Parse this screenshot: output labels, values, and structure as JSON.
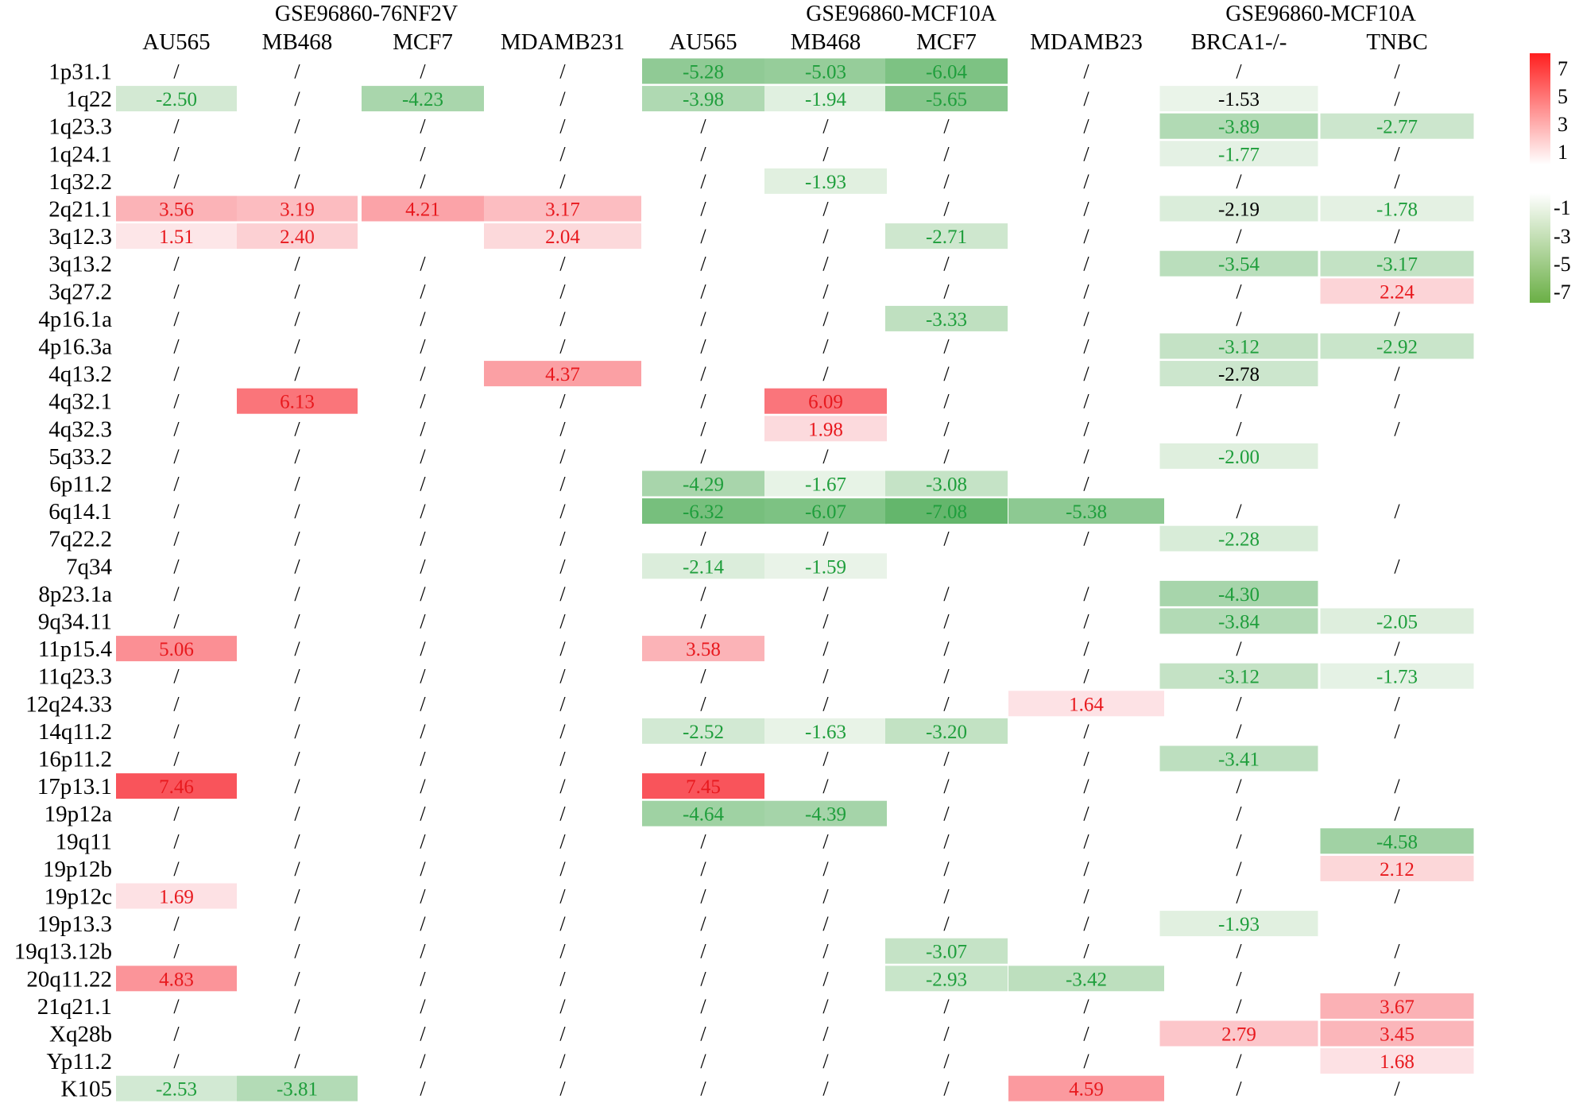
{
  "chart_data": {
    "type": "heatmap",
    "groups": [
      {
        "label": "GSE96860-76NF2V",
        "columns": [
          "AU565",
          "MB468",
          "MCF7",
          "MDAMB231"
        ]
      },
      {
        "label": "GSE96860-MCF10A",
        "columns": [
          "AU565",
          "MB468",
          "MCF7",
          "MDAMB23"
        ]
      },
      {
        "label": "GSE96860-MCF10A",
        "columns": [
          "BRCA1-/-",
          "TNBC"
        ]
      }
    ],
    "rows": [
      "1p31.1",
      "1q22",
      "1q23.3",
      "1q24.1",
      "1q32.2",
      "2q21.1",
      "3q12.3",
      "3q13.2",
      "3q27.2",
      "4p16.1a",
      "4p16.3a",
      "4q13.2",
      "4q32.1",
      "4q32.3",
      "5q33.2",
      "6p11.2",
      "6q14.1",
      "7q22.2",
      "7q34",
      "8p23.1a",
      "9q34.11",
      "11p15.4",
      "11q23.3",
      "12q24.33",
      "14q11.2",
      "16p11.2",
      "17p13.1",
      "19p12a",
      "19q11",
      "19p12b",
      "19p12c",
      "19p13.3",
      "19q13.12b",
      "20q11.22",
      "21q21.1",
      "Xq28b",
      "Yp11.2",
      "K105"
    ],
    "values": [
      [
        "/",
        "/",
        "/",
        "/",
        "-5.28",
        "-5.03",
        "-6.04",
        "/",
        "/",
        "/"
      ],
      [
        "-2.50",
        "/",
        "-4.23",
        "/",
        "-3.98",
        "-1.94",
        "-5.65",
        "/",
        "-1.53",
        "/"
      ],
      [
        "/",
        "/",
        "/",
        "/",
        "/",
        "/",
        "/",
        "/",
        "-3.89",
        "-2.77"
      ],
      [
        "/",
        "/",
        "/",
        "/",
        "/",
        "/",
        "/",
        "/",
        "-1.77",
        "/"
      ],
      [
        "/",
        "/",
        "/",
        "/",
        "/",
        "-1.93",
        "/",
        "/",
        "/",
        "/"
      ],
      [
        "3.56",
        "3.19",
        "4.21",
        "3.17",
        "/",
        "/",
        "/",
        "/",
        "-2.19",
        "-1.78"
      ],
      [
        "1.51",
        "2.40",
        "",
        "2.04",
        "/",
        "/",
        "-2.71",
        "/",
        "/",
        "/"
      ],
      [
        "/",
        "/",
        "/",
        "/",
        "/",
        "/",
        "/",
        "/",
        "-3.54",
        "-3.17"
      ],
      [
        "/",
        "/",
        "/",
        "/",
        "/",
        "/",
        "/",
        "/",
        "/",
        "2.24"
      ],
      [
        "/",
        "/",
        "/",
        "/",
        "/",
        "/",
        "-3.33",
        "/",
        "/",
        "/"
      ],
      [
        "/",
        "/",
        "/",
        "/",
        "/",
        "/",
        "/",
        "/",
        "-3.12",
        "-2.92"
      ],
      [
        "/",
        "/",
        "/",
        "4.37",
        "/",
        "/",
        "/",
        "/",
        "-2.78",
        "/"
      ],
      [
        "/",
        "6.13",
        "/",
        "/",
        "/",
        "6.09",
        "/",
        "/",
        "/",
        "/"
      ],
      [
        "/",
        "/",
        "/",
        "/",
        "/",
        "1.98",
        "/",
        "/",
        "/",
        "/"
      ],
      [
        "/",
        "/",
        "/",
        "/",
        "/",
        "/",
        "/",
        "/",
        "-2.00",
        ""
      ],
      [
        "/",
        "/",
        "/",
        "/",
        "-4.29",
        "-1.67",
        "-3.08",
        "/",
        "",
        ""
      ],
      [
        "/",
        "/",
        "/",
        "/",
        "-6.32",
        "-6.07",
        "-7.08",
        "-5.38",
        "/",
        "/"
      ],
      [
        "/",
        "/",
        "/",
        "/",
        "/",
        "/",
        "/",
        "/",
        "-2.28",
        ""
      ],
      [
        "/",
        "/",
        "/",
        "/",
        "-2.14",
        "-1.59",
        "",
        "",
        "",
        "/"
      ],
      [
        "/",
        "/",
        "/",
        "/",
        "/",
        "/",
        "/",
        "/",
        "-4.30",
        ""
      ],
      [
        "/",
        "/",
        "/",
        "/",
        "/",
        "/",
        "/",
        "/",
        "-3.84",
        "-2.05"
      ],
      [
        "5.06",
        "/",
        "/",
        "/",
        "3.58",
        "/",
        "/",
        "/",
        "/",
        "/"
      ],
      [
        "/",
        "/",
        "/",
        "/",
        "/",
        "/",
        "/",
        "/",
        "-3.12",
        "-1.73"
      ],
      [
        "/",
        "/",
        "/",
        "/",
        "/",
        "/",
        "/",
        "1.64",
        "/",
        "/"
      ],
      [
        "/",
        "/",
        "/",
        "/",
        "-2.52",
        "-1.63",
        "-3.20",
        "/",
        "/",
        "/"
      ],
      [
        "/",
        "/",
        "/",
        "/",
        "/",
        "/",
        "/",
        "/",
        "-3.41",
        ""
      ],
      [
        "7.46",
        "/",
        "/",
        "/",
        "7.45",
        "/",
        "/",
        "/",
        "/",
        "/"
      ],
      [
        "/",
        "/",
        "/",
        "/",
        "-4.64",
        "-4.39",
        "/",
        "/",
        "/",
        "/"
      ],
      [
        "/",
        "/",
        "/",
        "/",
        "/",
        "/",
        "/",
        "/",
        "/",
        "-4.58"
      ],
      [
        "/",
        "/",
        "/",
        "/",
        "/",
        "/",
        "/",
        "/",
        "/",
        "2.12"
      ],
      [
        "1.69",
        "/",
        "/",
        "/",
        "/",
        "/",
        "/",
        "/",
        "/",
        "/"
      ],
      [
        "/",
        "/",
        "/",
        "/",
        "/",
        "/",
        "/",
        "/",
        "-1.93",
        ""
      ],
      [
        "/",
        "/",
        "/",
        "/",
        "/",
        "/",
        "-3.07",
        "/",
        "/",
        "/"
      ],
      [
        "4.83",
        "/",
        "/",
        "/",
        "/",
        "/",
        "-2.93",
        "-3.42",
        "/",
        "/"
      ],
      [
        "/",
        "/",
        "/",
        "/",
        "/",
        "/",
        "/",
        "/",
        "/",
        "3.67"
      ],
      [
        "/",
        "/",
        "/",
        "/",
        "/",
        "/",
        "/",
        "/",
        "2.79",
        "3.45"
      ],
      [
        "/",
        "/",
        "/",
        "/",
        "/",
        "/",
        "/",
        "/",
        "/",
        "1.68"
      ],
      [
        "-2.53",
        "-3.81",
        "/",
        "/",
        "/",
        "/",
        "/",
        "4.59",
        "/",
        "/"
      ]
    ],
    "legend": {
      "positive_ticks": [
        "7",
        "5",
        "3",
        "1"
      ],
      "negative_ticks": [
        "-1",
        "-3",
        "-5",
        "-7"
      ],
      "positive_color": "#ff2020",
      "negative_color": "#6aaf45"
    },
    "colors": {
      "positive_text": "#e8191e",
      "negative_text": "#1f9e3c",
      "neutral_text": "#000000",
      "grid_text": "#000000"
    }
  }
}
